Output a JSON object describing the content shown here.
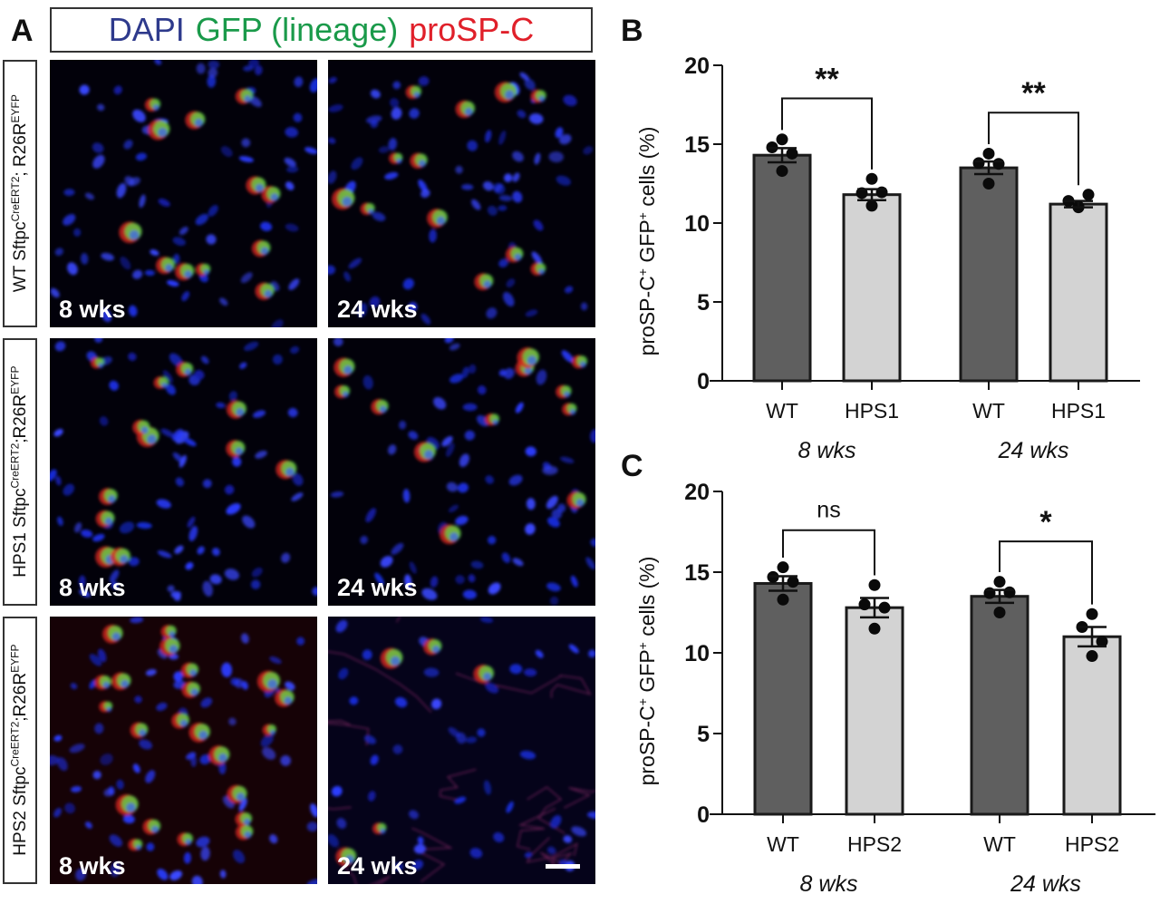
{
  "figure": {
    "panel_a_letter": "A",
    "panel_b_letter": "B",
    "panel_c_letter": "C",
    "legend": {
      "dapi": {
        "text": "DAPI",
        "color": "#2e3a8c"
      },
      "gfp": {
        "text": "GFP (lineage)",
        "color": "#1a9a4a"
      },
      "prospc": {
        "text": "proSP-C",
        "color": "#e0202a"
      }
    },
    "rows": [
      {
        "genotype": "WT",
        "gene_prefix": " Sftpc",
        "sup1": "CreERT2",
        "mid": "; R26R",
        "sup2": "EYFP",
        "panels": [
          {
            "time": "8 wks"
          },
          {
            "time": "24 wks"
          }
        ]
      },
      {
        "genotype": "HPS1",
        "gene_prefix": " Sftpc",
        "sup1": "CreERT2",
        "mid": ";R26R",
        "sup2": "EYFP",
        "panels": [
          {
            "time": "8 wks"
          },
          {
            "time": "24 wks"
          }
        ]
      },
      {
        "genotype": "HPS2",
        "gene_prefix": " Sftpc",
        "sup1": "CreERT2",
        "mid": ";R26R",
        "sup2": "EYFP",
        "panels": [
          {
            "time": "8 wks"
          },
          {
            "time": "24 wks"
          }
        ]
      }
    ],
    "scale_bar": true
  },
  "chart_data": [
    {
      "id": "B",
      "type": "bar",
      "title": "",
      "ylabel": "proSP-C+ GFP+ cells (%)",
      "ylabel_parts": [
        "proSP-C",
        "+",
        " GFP",
        "+",
        " cells (%)"
      ],
      "xlabel": "",
      "ylim": [
        0,
        20
      ],
      "yticks": [
        0,
        5,
        10,
        15,
        20
      ],
      "categories": [
        "WT",
        "HPS1",
        "WT",
        "HPS1"
      ],
      "groups": [
        {
          "label": "8 wks",
          "members": [
            0,
            1
          ]
        },
        {
          "label": "24 wks",
          "members": [
            2,
            3
          ]
        }
      ],
      "bar_colors": [
        "#5f5f5f",
        "#d3d3d3",
        "#5f5f5f",
        "#d3d3d3"
      ],
      "values": [
        14.3,
        11.8,
        13.5,
        11.2
      ],
      "sem": [
        0.45,
        0.35,
        0.4,
        0.2
      ],
      "points": [
        [
          15.3,
          14.8,
          14.4,
          13.3
        ],
        [
          12.8,
          11.9,
          11.95,
          11.1
        ],
        [
          14.4,
          13.8,
          13.75,
          12.5
        ],
        [
          11.0,
          11.4,
          11.8,
          11.05
        ]
      ],
      "significance": [
        {
          "from": 0,
          "to": 1,
          "label": "**",
          "y": 17.9
        },
        {
          "from": 2,
          "to": 3,
          "label": "**",
          "y": 17.0
        }
      ],
      "grid": false,
      "legend": null
    },
    {
      "id": "C",
      "type": "bar",
      "title": "",
      "ylabel": "proSP-C+ GFP+ cells (%)",
      "ylabel_parts": [
        "proSP-C",
        "+",
        " GFP",
        "+",
        " cells (%)"
      ],
      "xlabel": "",
      "ylim": [
        0,
        20
      ],
      "yticks": [
        0,
        5,
        10,
        15,
        20
      ],
      "categories": [
        "WT",
        "HPS2",
        "WT",
        "HPS2"
      ],
      "groups": [
        {
          "label": "8 wks",
          "members": [
            0,
            1
          ]
        },
        {
          "label": "24 wks",
          "members": [
            2,
            3
          ]
        }
      ],
      "bar_colors": [
        "#5f5f5f",
        "#d3d3d3",
        "#5f5f5f",
        "#d3d3d3"
      ],
      "values": [
        14.3,
        12.8,
        13.5,
        11.0
      ],
      "sem": [
        0.45,
        0.6,
        0.4,
        0.6
      ],
      "points": [
        [
          15.3,
          14.7,
          14.4,
          13.3
        ],
        [
          14.2,
          13.0,
          12.8,
          11.5
        ],
        [
          14.4,
          13.7,
          13.75,
          12.5
        ],
        [
          12.4,
          11.6,
          10.7,
          9.8
        ]
      ],
      "significance": [
        {
          "from": 0,
          "to": 1,
          "label": "ns",
          "y": 17.6
        },
        {
          "from": 2,
          "to": 3,
          "label": "*",
          "y": 16.9
        }
      ],
      "grid": false,
      "legend": null
    }
  ]
}
